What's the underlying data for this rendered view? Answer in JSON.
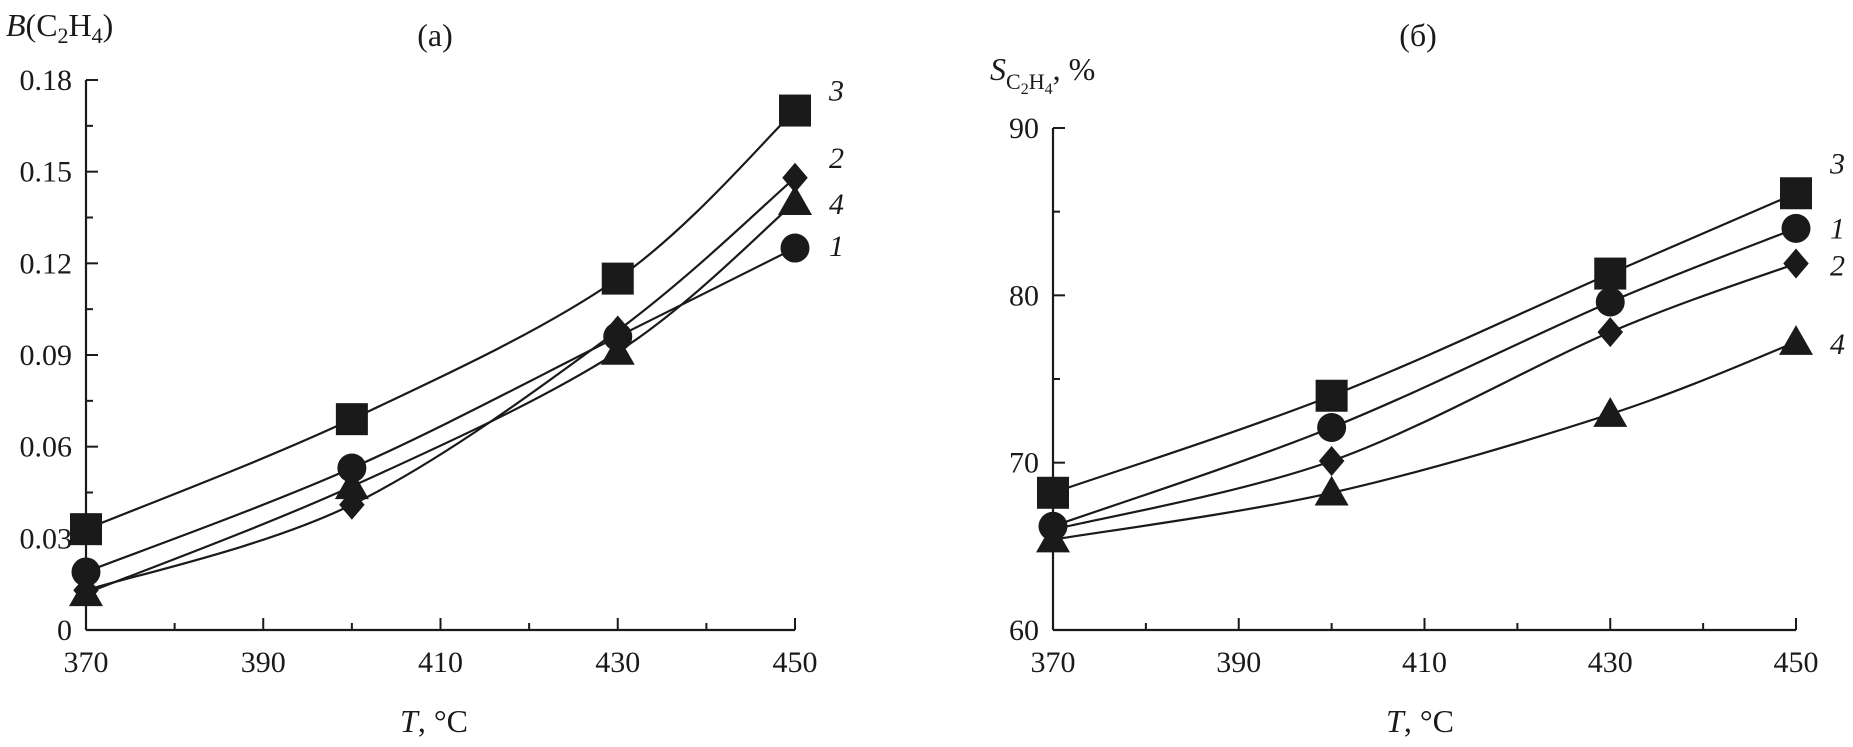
{
  "chart_data": [
    {
      "type": "line",
      "panel_label": "(а)",
      "y_title_main": "B",
      "y_title_sub": "C",
      "y_title_sub2": "2",
      "y_title_sub3": "H",
      "y_title_sub4": "4",
      "x_title_main": "T",
      "x_title_unit": ", °C",
      "xlim": [
        370,
        450
      ],
      "ylim": [
        0,
        0.18
      ],
      "x_ticks": [
        370,
        390,
        410,
        430,
        450
      ],
      "x_tick_labels": [
        "370",
        "390",
        "410",
        "430",
        "450"
      ],
      "y_ticks": [
        0,
        0.03,
        0.06,
        0.09,
        0.12,
        0.15,
        0.18
      ],
      "y_tick_labels": [
        "0",
        "0.03",
        "0.06",
        "0.09",
        "0.12",
        "0.15",
        "0.18"
      ],
      "x": [
        370,
        400,
        430,
        450
      ],
      "series": [
        {
          "label": "1",
          "marker": "circle",
          "values": [
            0.019,
            0.053,
            0.096,
            0.125
          ]
        },
        {
          "label": "2",
          "marker": "diamond",
          "values": [
            0.013,
            0.041,
            0.098,
            0.148
          ]
        },
        {
          "label": "3",
          "marker": "square",
          "values": [
            0.033,
            0.069,
            0.115,
            0.17
          ]
        },
        {
          "label": "4",
          "marker": "triangle",
          "values": [
            0.012,
            0.047,
            0.091,
            0.14
          ]
        }
      ]
    },
    {
      "type": "line",
      "panel_label": "(б)",
      "y_title_main": "S",
      "y_title_sub": "C",
      "y_title_sub2": "2",
      "y_title_sub3": "H",
      "y_title_sub4": "4",
      "y_title_unit": ", %",
      "x_title_main": "T",
      "x_title_unit": ", °C",
      "xlim": [
        370,
        450
      ],
      "ylim": [
        60,
        90
      ],
      "x_ticks": [
        370,
        390,
        410,
        430,
        450
      ],
      "x_tick_labels": [
        "370",
        "390",
        "410",
        "430",
        "450"
      ],
      "y_ticks": [
        60,
        70,
        80,
        90
      ],
      "y_tick_labels": [
        "60",
        "70",
        "80",
        "90"
      ],
      "x": [
        370,
        400,
        430,
        450
      ],
      "series": [
        {
          "label": "1",
          "marker": "circle",
          "values": [
            66.2,
            72.1,
            79.6,
            84.0
          ]
        },
        {
          "label": "2",
          "marker": "diamond",
          "values": [
            66.0,
            70.1,
            77.8,
            81.9
          ]
        },
        {
          "label": "3",
          "marker": "square",
          "values": [
            68.2,
            74.0,
            81.3,
            86.1
          ]
        },
        {
          "label": "4",
          "marker": "triangle",
          "values": [
            65.4,
            68.2,
            72.9,
            77.2
          ]
        }
      ]
    }
  ]
}
